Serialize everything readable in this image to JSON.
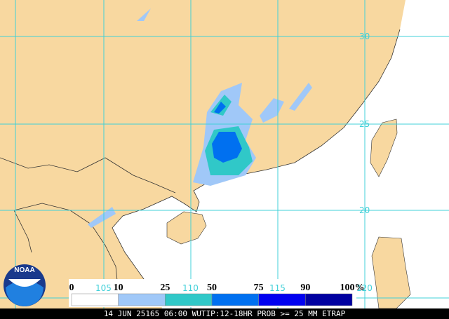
{
  "map": {
    "lat_labels": [
      "30",
      "25",
      "20"
    ],
    "lon_labels": [
      "105",
      "110",
      "115",
      "120"
    ],
    "legend": {
      "ticks": [
        "0",
        "10",
        "25",
        "50",
        "75",
        "90",
        "100%"
      ],
      "colors": [
        "#ffffff",
        "#a0c8f8",
        "#30c8c8",
        "#0070f0",
        "#0000f0",
        "#0000a0"
      ]
    },
    "logo": "NOAA",
    "footer": "14 JUN 25165 06:00 WUTIP:12-18HR PROB >= 25 MM ETRAP"
  }
}
